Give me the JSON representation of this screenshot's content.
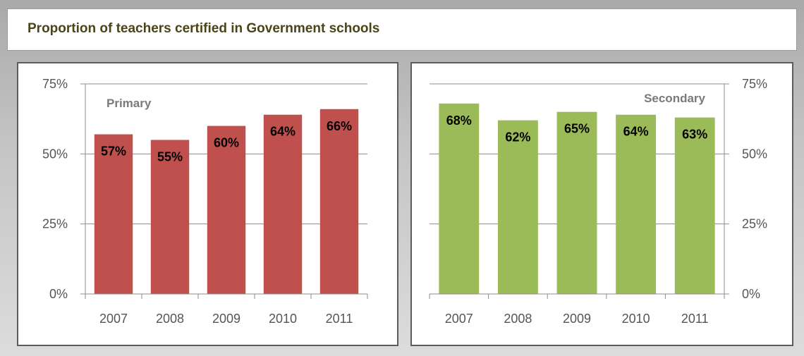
{
  "title": "Proportion of teachers certified in Government schools",
  "chart_data": [
    {
      "type": "bar",
      "title": "Primary",
      "categories": [
        "2007",
        "2008",
        "2009",
        "2010",
        "2011"
      ],
      "values": [
        57,
        55,
        60,
        64,
        66
      ],
      "data_labels": [
        "57%",
        "55%",
        "60%",
        "64%",
        "66%"
      ],
      "ylim": [
        0,
        75
      ],
      "yticks": [
        "0%",
        "25%",
        "50%",
        "75%"
      ],
      "yaxis_side": "left",
      "color": "#c0504d",
      "grid": true,
      "xlabel": "",
      "ylabel": ""
    },
    {
      "type": "bar",
      "title": "Secondary",
      "categories": [
        "2007",
        "2008",
        "2009",
        "2010",
        "2011"
      ],
      "values": [
        68,
        62,
        65,
        64,
        63
      ],
      "data_labels": [
        "68%",
        "62%",
        "65%",
        "64%",
        "63%"
      ],
      "ylim": [
        0,
        75
      ],
      "yticks": [
        "0%",
        "25%",
        "50%",
        "75%"
      ],
      "yaxis_side": "right",
      "color": "#9bbb59",
      "grid": true,
      "xlabel": "",
      "ylabel": ""
    }
  ]
}
